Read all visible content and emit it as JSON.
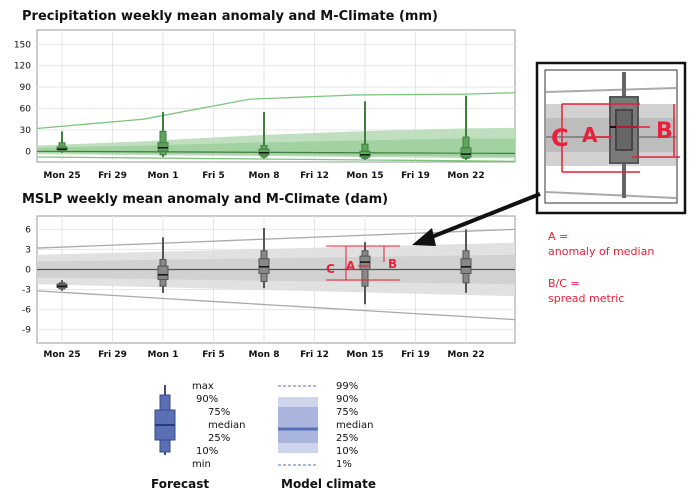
{
  "chart_data": [
    {
      "type": "boxplot",
      "title": "Precipitation weekly mean anomaly and M-Climate (mm)",
      "ylim": [
        -15,
        170
      ],
      "yticks": [
        150,
        120,
        90,
        60,
        30,
        0
      ],
      "x_dates": [
        "Mon 25",
        "Fri 29",
        "Mon 1",
        "Fri 5",
        "Mon 8",
        "Fri 12",
        "Mon 15",
        "Fri 19",
        "Mon 22"
      ],
      "boxes": [
        {
          "label": "Mon 25",
          "min": -2,
          "p10": 0,
          "p25": 2,
          "median": 3,
          "p75": 6,
          "p90": 12,
          "max": 28
        },
        {
          "label": "Mon 1",
          "min": -8,
          "p10": -5,
          "p25": 0,
          "median": 5,
          "p75": 12,
          "p90": 28,
          "max": 55
        },
        {
          "label": "Mon 8",
          "min": -10,
          "p10": -8,
          "p25": -5,
          "median": -2,
          "p75": 3,
          "p90": 8,
          "max": 55
        },
        {
          "label": "Mon 15",
          "min": -12,
          "p10": -10,
          "p25": -8,
          "median": -5,
          "p75": 0,
          "p90": 10,
          "max": 70
        },
        {
          "label": "Mon 22",
          "min": -12,
          "p10": -10,
          "p25": -8,
          "median": -4,
          "p75": 5,
          "p90": 20,
          "max": 78
        }
      ],
      "climate": {
        "p99": [
          [
            0,
            32
          ],
          [
            2,
            45
          ],
          [
            4,
            73
          ],
          [
            6,
            79
          ],
          [
            8,
            80
          ],
          [
            9,
            82
          ]
        ],
        "p90": [
          [
            0,
            8
          ],
          [
            2,
            14
          ],
          [
            4,
            22
          ],
          [
            6,
            28
          ],
          [
            8,
            32
          ],
          [
            9,
            33
          ]
        ],
        "p75": [
          [
            0,
            5
          ],
          [
            2,
            8
          ],
          [
            4,
            12
          ],
          [
            6,
            15
          ],
          [
            8,
            18
          ],
          [
            9,
            18
          ]
        ],
        "median": [
          [
            0,
            0
          ],
          [
            9,
            -3
          ]
        ],
        "p25": [
          [
            0,
            -2
          ],
          [
            9,
            -8
          ]
        ],
        "p10": [
          [
            0,
            -4
          ],
          [
            9,
            -10
          ]
        ],
        "p1": [
          [
            0,
            -8
          ],
          [
            9,
            -14
          ]
        ]
      }
    },
    {
      "type": "boxplot",
      "title": "MSLP weekly mean anomaly and M-Climate (dam)",
      "ylim": [
        -11,
        8
      ],
      "yticks": [
        6,
        3,
        0,
        -3,
        -6,
        -9
      ],
      "x_dates": [
        "Mon 25",
        "Fri 29",
        "Mon 1",
        "Fri 5",
        "Mon 8",
        "Fri 12",
        "Mon 15",
        "Fri 19",
        "Mon 22"
      ],
      "boxes": [
        {
          "label": "Mon 25",
          "min": -3.2,
          "p10": -2.9,
          "p25": -2.7,
          "median": -2.5,
          "p75": -2.2,
          "p90": -2.0,
          "max": -1.6
        },
        {
          "label": "Mon 1",
          "min": -3.5,
          "p10": -2.5,
          "p25": -1.5,
          "median": -0.8,
          "p75": 0.5,
          "p90": 1.5,
          "max": 4.8
        },
        {
          "label": "Mon 8",
          "min": -2.8,
          "p10": -1.8,
          "p25": -0.6,
          "median": 0.4,
          "p75": 1.6,
          "p90": 2.8,
          "max": 6.2
        },
        {
          "label": "Mon 15",
          "min": -5.2,
          "p10": -2.5,
          "p25": 0.0,
          "median": 1.1,
          "p75": 2.0,
          "p90": 2.8,
          "max": 4.1
        },
        {
          "label": "Mon 22",
          "min": -3.5,
          "p10": -2.0,
          "p25": -0.6,
          "median": 0.4,
          "p75": 1.6,
          "p90": 2.8,
          "max": 6.0
        }
      ],
      "climate": {
        "p99": [
          [
            0,
            3.2
          ],
          [
            9,
            6.0
          ]
        ],
        "p90": [
          [
            0,
            2.2
          ],
          [
            9,
            4.0
          ]
        ],
        "p75": [
          [
            0,
            1.2
          ],
          [
            9,
            2.2
          ]
        ],
        "median": [
          [
            0,
            0
          ],
          [
            9,
            0
          ]
        ],
        "p25": [
          [
            0,
            -1.2
          ],
          [
            9,
            -2.2
          ]
        ],
        "p10": [
          [
            0,
            -2.2
          ],
          [
            9,
            -4.0
          ]
        ],
        "p1": [
          [
            0,
            -3.2
          ],
          [
            9,
            -7.5
          ]
        ]
      }
    }
  ],
  "annotations": {
    "zoom_labels": {
      "a": "A",
      "b": "B",
      "c": "C"
    },
    "inline_labels": {
      "a": "A",
      "b": "B",
      "c": "C"
    },
    "text": [
      "A =",
      "anomaly of median",
      "B/C =",
      "spread metric"
    ]
  },
  "legend": {
    "forecast_title": "Forecast",
    "forecast_labels": [
      "max",
      "90%",
      "75%",
      "median",
      "25%",
      "10%",
      "min"
    ],
    "climate_title": "Model climate",
    "climate_labels": [
      "99%",
      "90%",
      "75%",
      "median",
      "25%",
      "10%",
      "1%"
    ]
  },
  "colors": {
    "precip_box": "#5fa35f",
    "precip_band": "#b8dcb8",
    "precip_line": "#7dc67d",
    "mslp_band": "#d6d6d6",
    "box_gray": "#6d6d6d",
    "legend_blue": "#5b6fb5",
    "red": "#e8203a"
  }
}
